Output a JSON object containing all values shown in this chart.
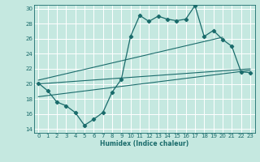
{
  "xlabel": "Humidex (Indice chaleur)",
  "ylabel": "",
  "xlim": [
    -0.5,
    23.5
  ],
  "ylim": [
    13.5,
    30.5
  ],
  "yticks": [
    14,
    16,
    18,
    20,
    22,
    24,
    26,
    28,
    30
  ],
  "xticks": [
    0,
    1,
    2,
    3,
    4,
    5,
    6,
    7,
    8,
    9,
    10,
    11,
    12,
    13,
    14,
    15,
    16,
    17,
    18,
    19,
    20,
    21,
    22,
    23
  ],
  "bg_color": "#c5e8e0",
  "line_color": "#1a6b6b",
  "curve_x": [
    0,
    1,
    2,
    3,
    4,
    5,
    6,
    7,
    8,
    9,
    10,
    11,
    12,
    13,
    14,
    15,
    16,
    17,
    18,
    19,
    20,
    21,
    22,
    23
  ],
  "curve_y": [
    20.1,
    19.1,
    17.6,
    17.1,
    16.2,
    14.5,
    15.3,
    16.2,
    18.9,
    20.6,
    26.3,
    29.1,
    28.3,
    29.0,
    28.6,
    28.4,
    28.6,
    30.4,
    26.3,
    27.1,
    25.9,
    25.0,
    21.6,
    21.5
  ],
  "line1_x": [
    0,
    23
  ],
  "line1_y": [
    20.0,
    22.0
  ],
  "line2_x": [
    0,
    20
  ],
  "line2_y": [
    20.5,
    26.2
  ],
  "line3_x": [
    0,
    23
  ],
  "line3_y": [
    18.3,
    21.8
  ]
}
